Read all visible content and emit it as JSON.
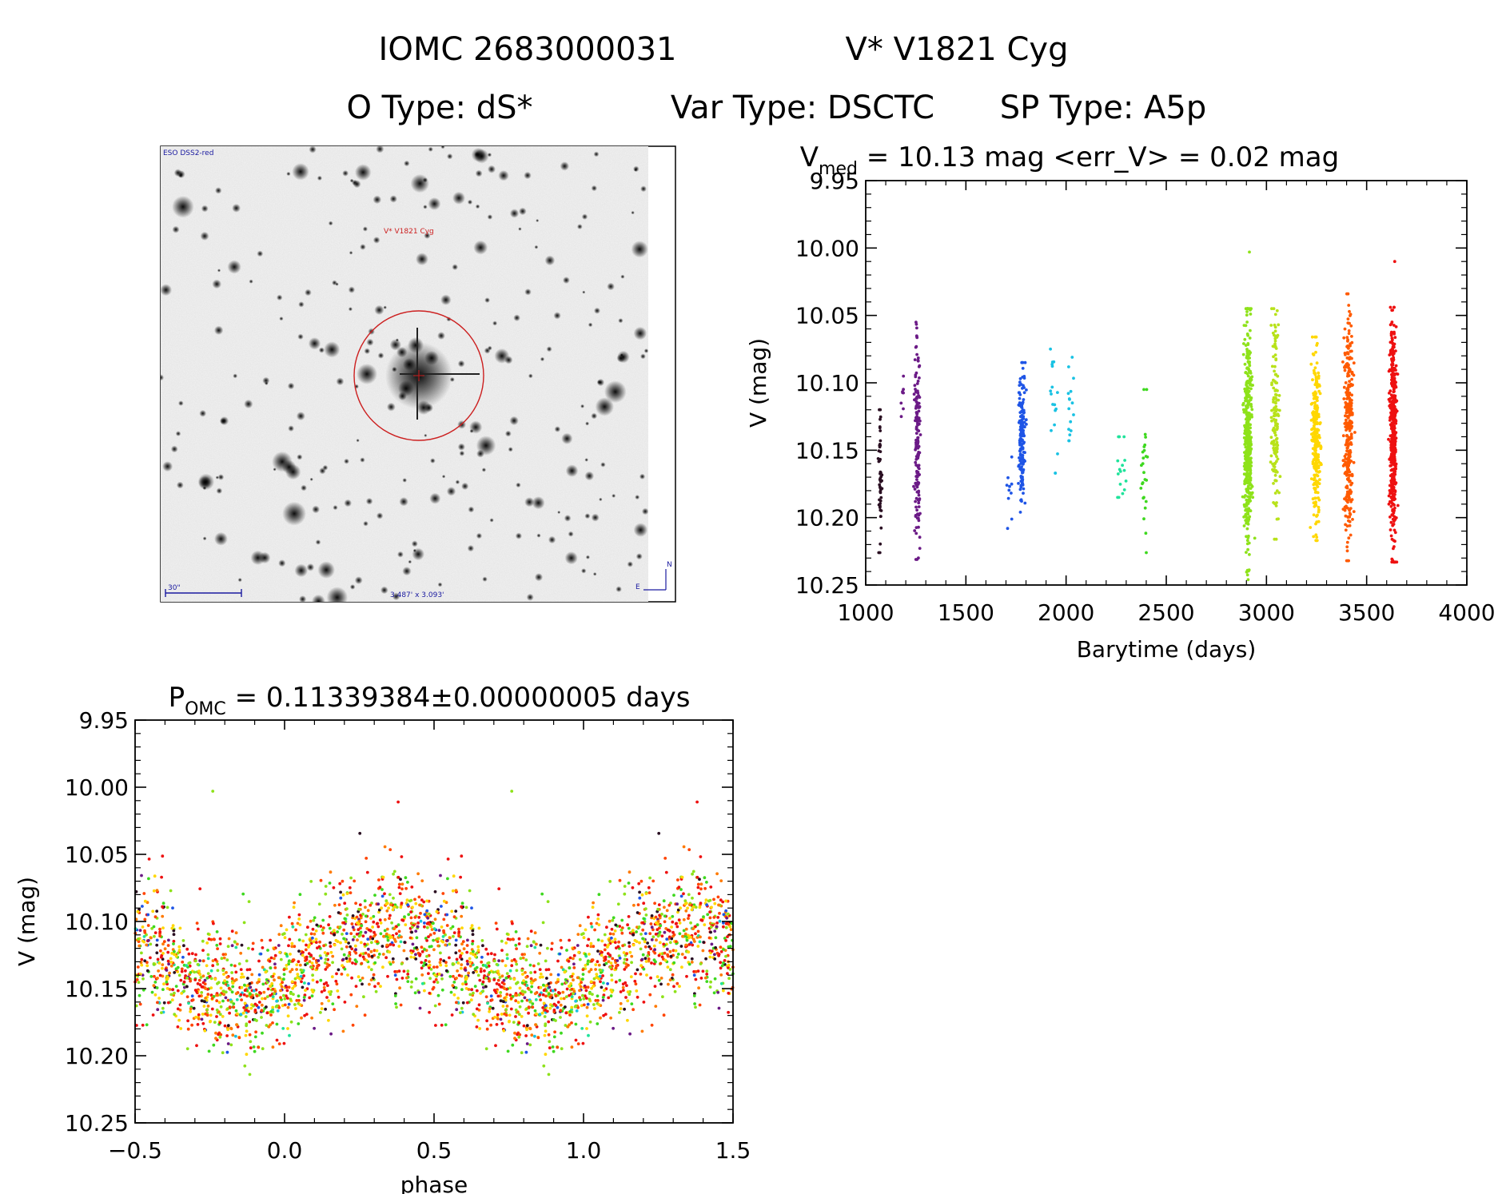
{
  "header": {
    "title_id": "IOMC 2683000031",
    "title_name": "V* V1821 Cyg",
    "otype": "O Type: dS*",
    "vartype": "Var Type: DSCTC",
    "sptype": "SP Type: A5p"
  },
  "image": {
    "survey": "ESO DSS2-red",
    "target": "V* V1821 Cyg",
    "scale": "30\"",
    "fov": "3.487' x 3.093'",
    "north": "N",
    "east": "E"
  },
  "colors": {
    "axis": "#000000",
    "circle": "#cc1f1f",
    "label_blue": "#1a1aa0",
    "palette": [
      "#2a0f22",
      "#6b1a86",
      "#1f55e6",
      "#19c2e3",
      "#1fe39b",
      "#3ed81f",
      "#8ee21a",
      "#ffd700",
      "#ff7a00",
      "#ff4400",
      "#ee1111"
    ]
  },
  "chart_data": [
    {
      "type": "scatter",
      "id": "light_curve",
      "title_main": "V",
      "title_sub": "med",
      "title_rest": " = 10.13 mag <err_V> = 0.02 mag",
      "xlabel": "Barytime (days)",
      "ylabel": "V (mag)",
      "xlim": [
        1000,
        4000
      ],
      "ylim": [
        9.95,
        10.25
      ],
      "y_inverted": true,
      "xticks": [
        1000,
        1500,
        2000,
        2500,
        3000,
        3500,
        4000
      ],
      "xtick_labels": [
        "1000",
        "1500",
        "2000",
        "2500",
        "3000",
        "3500",
        "4000"
      ],
      "yticks": [
        9.95,
        10.0,
        10.05,
        10.1,
        10.15,
        10.2,
        10.25
      ],
      "ytick_labels": [
        "9.95",
        "10.00",
        "10.05",
        "10.10",
        "10.15",
        "10.20",
        "10.25"
      ],
      "groups": [
        {
          "x": [
            1060,
            1085
          ],
          "ymin": 10.12,
          "ymax": 10.226,
          "n": 50,
          "color": "#2a0f22"
        },
        {
          "x": [
            1170,
            1200
          ],
          "ymin": 10.095,
          "ymax": 10.125,
          "n": 8,
          "color": "#6b1a86"
        },
        {
          "x": [
            1240,
            1275
          ],
          "ymin": 10.055,
          "ymax": 10.231,
          "n": 160,
          "color": "#6b1a86"
        },
        {
          "x": [
            1700,
            1730
          ],
          "ymin": 10.155,
          "ymax": 10.208,
          "n": 10,
          "color": "#1f55e6"
        },
        {
          "x": [
            1760,
            1800
          ],
          "ymin": 10.085,
          "ymax": 10.196,
          "n": 170,
          "color": "#1f55e6"
        },
        {
          "x": [
            1920,
            1960
          ],
          "ymin": 10.075,
          "ymax": 10.167,
          "n": 18,
          "color": "#19c2e3"
        },
        {
          "x": [
            2010,
            2040
          ],
          "ymin": 10.081,
          "ymax": 10.143,
          "n": 16,
          "color": "#19c2e3"
        },
        {
          "x": [
            2250,
            2300
          ],
          "ymin": 10.14,
          "ymax": 10.185,
          "n": 16,
          "color": "#1fe39b"
        },
        {
          "x": [
            2360,
            2420
          ],
          "ymin": 10.105,
          "ymax": 10.226,
          "n": 26,
          "color": "#3ed81f"
        },
        {
          "x": [
            2880,
            2935
          ],
          "ymin": 10.045,
          "ymax": 10.246,
          "n": 420,
          "color": "#8ee21a"
        },
        {
          "x": [
            3020,
            3070
          ],
          "ymin": 10.045,
          "ymax": 10.216,
          "n": 160,
          "color": "#b8e21a"
        },
        {
          "x": [
            3220,
            3275
          ],
          "ymin": 10.066,
          "ymax": 10.217,
          "n": 260,
          "color": "#ffd700"
        },
        {
          "x": [
            3380,
            3440
          ],
          "ymin": 10.034,
          "ymax": 10.232,
          "n": 300,
          "color": "#ff5a00"
        },
        {
          "x": [
            3610,
            3655
          ],
          "ymin": 10.044,
          "ymax": 10.233,
          "n": 460,
          "color": "#ee1111"
        }
      ],
      "outliers": [
        {
          "x": 2915,
          "y": 10.003,
          "color": "#8ee21a"
        },
        {
          "x": 3640,
          "y": 10.01,
          "color": "#ee1111"
        },
        {
          "x": 1065,
          "y": 10.226,
          "color": "#2a0f22"
        }
      ]
    },
    {
      "type": "scatter",
      "id": "phase_curve",
      "title_main": "P",
      "title_sub": "OMC",
      "title_rest": " = 0.11339384±0.00000005 days",
      "xlabel": "phase",
      "ylabel": "V (mag)",
      "xlim": [
        -0.5,
        1.5
      ],
      "ylim": [
        9.95,
        10.25
      ],
      "y_inverted": true,
      "xticks": [
        -0.5,
        0.0,
        0.5,
        1.0,
        1.5
      ],
      "xtick_labels": [
        "−0.5",
        "0.0",
        "0.5",
        "1.0",
        "1.5"
      ],
      "yticks": [
        9.95,
        10.0,
        10.05,
        10.1,
        10.15,
        10.2,
        10.25
      ],
      "ytick_labels": [
        "9.95",
        "10.00",
        "10.05",
        "10.10",
        "10.15",
        "10.20",
        "10.25"
      ],
      "period_days": 0.11339384,
      "mean_mag": 10.13,
      "amplitude_mag": 0.025,
      "max_light_phase": 0.35,
      "scatter_mag": 0.022,
      "n_per_cycle": 1400,
      "outliers": [
        {
          "x": -0.24,
          "y": 10.003,
          "color": "#8ee21a"
        },
        {
          "x": 0.76,
          "y": 10.003,
          "color": "#8ee21a"
        },
        {
          "x": 0.38,
          "y": 10.011,
          "color": "#ee1111"
        },
        {
          "x": 1.38,
          "y": 10.011,
          "color": "#ee1111"
        }
      ]
    }
  ]
}
